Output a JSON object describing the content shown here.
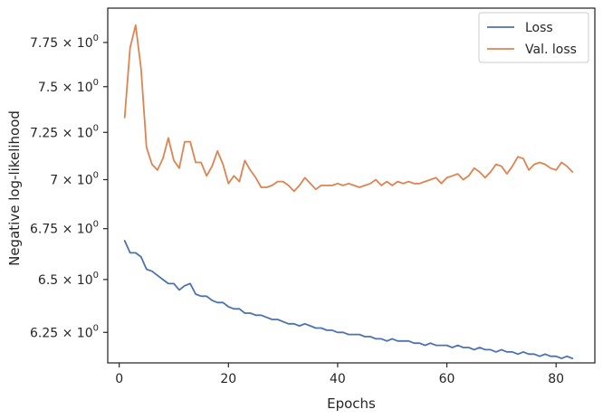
{
  "chart_data": {
    "type": "line",
    "xlabel": "Epochs",
    "ylabel": "Negative log-likelihood",
    "y_scale": "log",
    "xlim": [
      -2.1,
      87.1
    ],
    "ylim": [
      6.11,
      7.95
    ],
    "grid": false,
    "legend_position": "top-right",
    "x_ticks": [
      0,
      20,
      40,
      60,
      80
    ],
    "x_tick_labels": [
      "0",
      "20",
      "40",
      "60",
      "80"
    ],
    "y_ticks": [
      6.25,
      6.5,
      6.75,
      7.0,
      7.25,
      7.5,
      7.75
    ],
    "y_tick_labels": [
      {
        "mantissa": "6.25 × 10",
        "exp": "0"
      },
      {
        "mantissa": "6.5 × 10",
        "exp": "0"
      },
      {
        "mantissa": "6.75 × 10",
        "exp": "0"
      },
      {
        "mantissa": "7 × 10",
        "exp": "0"
      },
      {
        "mantissa": "7.25 × 10",
        "exp": "0"
      },
      {
        "mantissa": "7.5 × 10",
        "exp": "0"
      },
      {
        "mantissa": "7.75 × 10",
        "exp": "0"
      }
    ],
    "series": [
      {
        "name": "Loss",
        "color": "#4c72b0",
        "x": [
          1,
          2,
          3,
          4,
          5,
          6,
          7,
          8,
          9,
          10,
          11,
          12,
          13,
          14,
          15,
          16,
          17,
          18,
          19,
          20,
          21,
          22,
          23,
          24,
          25,
          26,
          27,
          28,
          29,
          30,
          31,
          32,
          33,
          34,
          35,
          36,
          37,
          38,
          39,
          40,
          41,
          42,
          43,
          44,
          45,
          46,
          47,
          48,
          49,
          50,
          51,
          52,
          53,
          54,
          55,
          56,
          57,
          58,
          59,
          60,
          61,
          62,
          63,
          64,
          65,
          66,
          67,
          68,
          69,
          70,
          71,
          72,
          73,
          74,
          75,
          76,
          77,
          78,
          79,
          80,
          81,
          82,
          83
        ],
        "y": [
          6.69,
          6.63,
          6.63,
          6.61,
          6.55,
          6.54,
          6.52,
          6.5,
          6.48,
          6.48,
          6.45,
          6.47,
          6.48,
          6.43,
          6.42,
          6.42,
          6.4,
          6.39,
          6.39,
          6.37,
          6.36,
          6.36,
          6.34,
          6.34,
          6.33,
          6.33,
          6.32,
          6.31,
          6.31,
          6.3,
          6.29,
          6.29,
          6.28,
          6.29,
          6.28,
          6.27,
          6.27,
          6.26,
          6.26,
          6.25,
          6.25,
          6.24,
          6.24,
          6.24,
          6.23,
          6.23,
          6.22,
          6.22,
          6.21,
          6.22,
          6.21,
          6.21,
          6.21,
          6.2,
          6.2,
          6.19,
          6.2,
          6.19,
          6.19,
          6.19,
          6.18,
          6.19,
          6.18,
          6.18,
          6.17,
          6.18,
          6.17,
          6.17,
          6.16,
          6.17,
          6.16,
          6.16,
          6.15,
          6.16,
          6.15,
          6.15,
          6.14,
          6.15,
          6.14,
          6.14,
          6.13,
          6.14,
          6.13
        ]
      },
      {
        "name": "Val. loss",
        "color": "#dd8452",
        "x": [
          1,
          2,
          3,
          4,
          5,
          6,
          7,
          8,
          9,
          10,
          11,
          12,
          13,
          14,
          15,
          16,
          17,
          18,
          19,
          20,
          21,
          22,
          23,
          24,
          25,
          26,
          27,
          28,
          29,
          30,
          31,
          32,
          33,
          34,
          35,
          36,
          37,
          38,
          39,
          40,
          41,
          42,
          43,
          44,
          45,
          46,
          47,
          48,
          49,
          50,
          51,
          52,
          53,
          54,
          55,
          56,
          57,
          58,
          59,
          60,
          61,
          62,
          63,
          64,
          65,
          66,
          67,
          68,
          69,
          70,
          71,
          72,
          73,
          74,
          75,
          76,
          77,
          78,
          79,
          80,
          81,
          82,
          83
        ],
        "y": [
          7.33,
          7.72,
          7.85,
          7.6,
          7.17,
          7.08,
          7.05,
          7.11,
          7.22,
          7.1,
          7.06,
          7.2,
          7.2,
          7.09,
          7.09,
          7.02,
          7.07,
          7.15,
          7.08,
          6.98,
          7.02,
          6.99,
          7.1,
          7.05,
          7.01,
          6.96,
          6.96,
          6.97,
          6.99,
          6.99,
          6.97,
          6.94,
          6.97,
          7.01,
          6.98,
          6.95,
          6.97,
          6.97,
          6.97,
          6.98,
          6.97,
          6.98,
          6.97,
          6.96,
          6.97,
          6.98,
          7.0,
          6.97,
          6.99,
          6.97,
          6.99,
          6.98,
          6.99,
          6.98,
          6.98,
          6.99,
          7.0,
          7.01,
          6.98,
          7.01,
          7.02,
          7.03,
          7.0,
          7.02,
          7.06,
          7.04,
          7.01,
          7.04,
          7.08,
          7.07,
          7.03,
          7.07,
          7.12,
          7.11,
          7.05,
          7.08,
          7.09,
          7.08,
          7.06,
          7.05,
          7.09,
          7.07,
          7.04
        ]
      }
    ]
  }
}
